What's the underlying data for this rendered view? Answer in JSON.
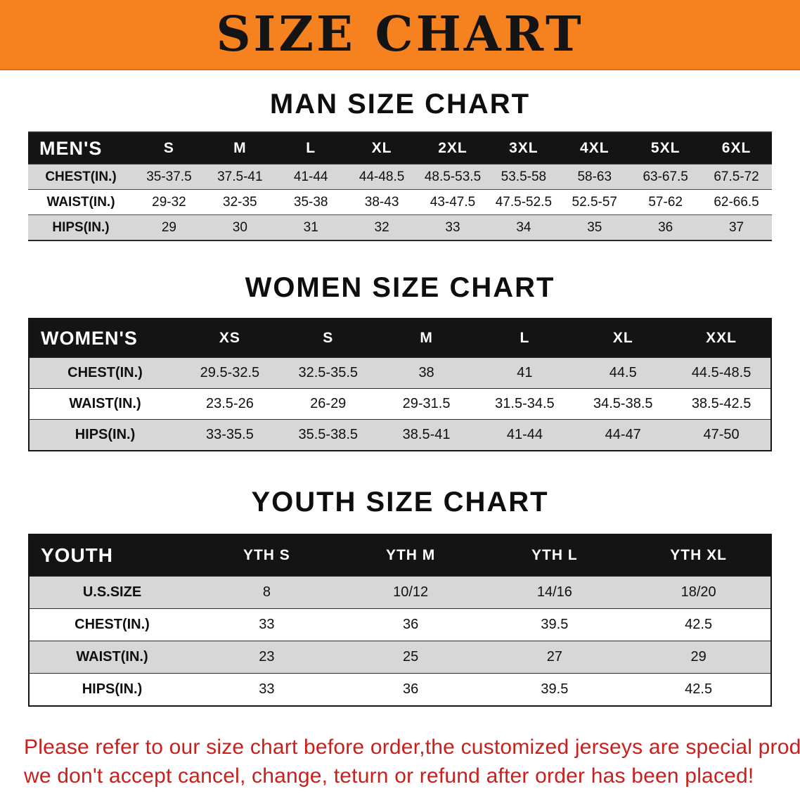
{
  "colors": {
    "banner_bg": "#f5821f",
    "header_bg": "#141414",
    "stripe": "#d7d7d7",
    "footer_text": "#c8201d"
  },
  "banner": {
    "title": "SIZE CHART"
  },
  "sections": [
    {
      "heading": "MAN SIZE CHART",
      "table": {
        "label": "MEN'S",
        "columns": [
          "S",
          "M",
          "L",
          "XL",
          "2XL",
          "3XL",
          "4XL",
          "5XL",
          "6XL"
        ],
        "rows": [
          {
            "label": "CHEST(IN.)",
            "values": [
              "35-37.5",
              "37.5-41",
              "41-44",
              "44-48.5",
              "48.5-53.5",
              "53.5-58",
              "58-63",
              "63-67.5",
              "67.5-72"
            ]
          },
          {
            "label": "WAIST(IN.)",
            "values": [
              "29-32",
              "32-35",
              "35-38",
              "38-43",
              "43-47.5",
              "47.5-52.5",
              "52.5-57",
              "57-62",
              "62-66.5"
            ]
          },
          {
            "label": "HIPS(IN.)",
            "values": [
              "29",
              "30",
              "31",
              "32",
              "33",
              "34",
              "35",
              "36",
              "37"
            ]
          }
        ]
      }
    },
    {
      "heading": "WOMEN SIZE CHART",
      "table": {
        "label": "WOMEN'S",
        "columns": [
          "XS",
          "S",
          "M",
          "L",
          "XL",
          "XXL"
        ],
        "rows": [
          {
            "label": "CHEST(IN.)",
            "values": [
              "29.5-32.5",
              "32.5-35.5",
              "38",
              "41",
              "44.5",
              "44.5-48.5"
            ]
          },
          {
            "label": "WAIST(IN.)",
            "values": [
              "23.5-26",
              "26-29",
              "29-31.5",
              "31.5-34.5",
              "34.5-38.5",
              "38.5-42.5"
            ]
          },
          {
            "label": "HIPS(IN.)",
            "values": [
              "33-35.5",
              "35.5-38.5",
              "38.5-41",
              "41-44",
              "44-47",
              "47-50"
            ]
          }
        ]
      }
    },
    {
      "heading": "YOUTH SIZE CHART",
      "table": {
        "label": "YOUTH",
        "columns": [
          "YTH S",
          "YTH M",
          "YTH L",
          "YTH XL"
        ],
        "rows": [
          {
            "label": "U.S.SIZE",
            "values": [
              "8",
              "10/12",
              "14/16",
              "18/20"
            ]
          },
          {
            "label": "CHEST(IN.)",
            "values": [
              "33",
              "36",
              "39.5",
              "42.5"
            ]
          },
          {
            "label": "WAIST(IN.)",
            "values": [
              "23",
              "25",
              "27",
              "29"
            ]
          },
          {
            "label": "HIPS(IN.)",
            "values": [
              "33",
              "36",
              "39.5",
              "42.5"
            ]
          }
        ]
      }
    }
  ],
  "footer": {
    "lines": [
      "Please refer to our size chart before order,the customized jerseys are special products,",
      "we don't accept cancel, change, teturn or refund after order has been placed!"
    ]
  }
}
